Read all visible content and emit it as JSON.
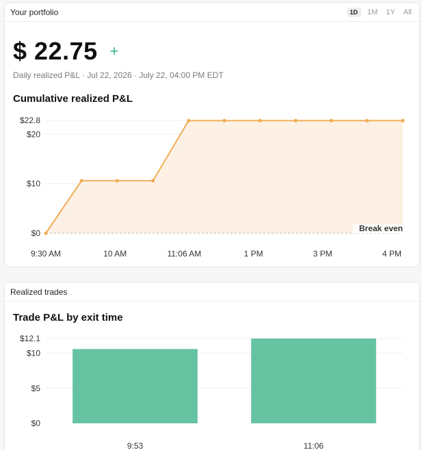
{
  "portfolio": {
    "header_title": "Your portfolio",
    "ranges": [
      "1D",
      "1M",
      "1Y",
      "All"
    ],
    "active_range": "1D",
    "value": "$ 22.75",
    "trend_symbol": "+",
    "subtitle": "Daily realized P&L · Jul 22, 2026 · July 22, 04:00 PM EDT",
    "chart_title": "Cumulative realized P&L"
  },
  "trades": {
    "header_title": "Realized trades",
    "chart_title": "Trade P&L by exit time"
  },
  "colors": {
    "line": "#f0ad57",
    "area": "#fdf1e5",
    "bar": "#66c3a2",
    "positive": "#3cb98b",
    "break_even_label": "#8c94aa"
  },
  "chart_data": [
    {
      "type": "area",
      "title": "Cumulative realized P&L",
      "x": [
        "9:30 AM",
        "9:53 AM",
        "10:00 AM",
        "11:00 AM",
        "11:06 AM",
        "12:00 PM",
        "1 PM",
        "2 PM",
        "3 PM",
        "3:30 PM",
        "4 PM"
      ],
      "x_tick_labels": [
        "9:30 AM",
        "10 AM",
        "11:06 AM",
        "1 PM",
        "3 PM",
        "4 PM"
      ],
      "y": [
        0,
        10.6,
        10.6,
        10.6,
        22.75,
        22.75,
        22.75,
        22.75,
        22.75,
        22.75,
        22.75
      ],
      "y_tick_labels": [
        "$0",
        "$10",
        "$20",
        "$22.8"
      ],
      "ylim": [
        0,
        22.8
      ],
      "annotation": "Break even",
      "grid": true
    },
    {
      "type": "bar",
      "title": "Trade P&L by exit time",
      "categories": [
        "9:53",
        "11:06"
      ],
      "values": [
        10.6,
        12.1
      ],
      "y_tick_labels": [
        "$0",
        "$5",
        "$10",
        "$12.1"
      ],
      "ylim": [
        0,
        12.1
      ],
      "grid": true
    }
  ]
}
